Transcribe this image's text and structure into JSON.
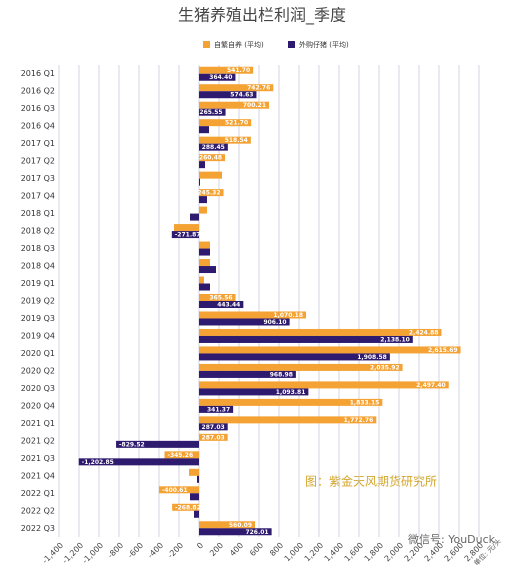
{
  "chart_data": {
    "type": "hbar",
    "title": "生猪养殖出栏利润_季度",
    "categories": [
      "2016 Q1",
      "2016 Q2",
      "2016 Q3",
      "2016 Q4",
      "2017 Q1",
      "2017 Q2",
      "2017 Q3",
      "2017 Q4",
      "2018 Q1",
      "2018 Q2",
      "2018 Q3",
      "2018 Q4",
      "2019 Q1",
      "2019 Q2",
      "2019 Q3",
      "2019 Q4",
      "2020 Q1",
      "2020 Q2",
      "2020 Q3",
      "2020 Q4",
      "2021 Q1",
      "2021 Q2",
      "2021 Q3",
      "2021 Q4",
      "2022 Q1",
      "2022 Q2",
      "2022 Q3"
    ],
    "series": [
      {
        "name": "自繁自养 (平均)",
        "color": "#f4a233",
        "values": [
          541.7,
          742.76,
          700.21,
          521.7,
          518.54,
          260.48,
          230,
          245.32,
          80,
          -250,
          110,
          110,
          50,
          365.56,
          1070.18,
          2424.88,
          2615.69,
          2035.92,
          2497.4,
          1833.15,
          1772.76,
          287.03,
          -345.26,
          -100,
          -400.61,
          -268.82,
          560.09
        ],
        "value_labels": [
          "541.70",
          "742.76",
          "700.21",
          "521.70",
          "518.54",
          "260.48",
          null,
          "245.32",
          null,
          null,
          null,
          null,
          null,
          "365.56",
          "1,070.18",
          "2,424.88",
          "2,615.69",
          "2,035.92",
          "2,497.40",
          "1,833.15",
          "1,772.76",
          "287.03",
          "-345.26",
          null,
          "-400.61",
          "-268.82",
          "560.09"
        ]
      },
      {
        "name": "外购仔猪 (平均)",
        "color": "#2e1a6e",
        "values": [
          364.4,
          574.63,
          265.55,
          100,
          288.45,
          60,
          10,
          80,
          -90,
          -271.87,
          110,
          170,
          110,
          443.44,
          906.1,
          2138.1,
          1908.58,
          968.98,
          1093.81,
          341.37,
          287.03,
          -829.52,
          -1202.85,
          -20,
          -90,
          -50,
          726.01
        ],
        "value_labels": [
          "364.40",
          "574.63",
          "265.55",
          null,
          "288.45",
          null,
          null,
          null,
          null,
          "-271.87",
          null,
          null,
          null,
          "443.44",
          "906.10",
          "2,138.10",
          "1,908.58",
          "968.98",
          "1,093.81",
          "341.37",
          "287.03",
          "-829.52",
          "-1,202.85",
          null,
          null,
          null,
          "726.01"
        ]
      }
    ],
    "xlim": [
      -1400,
      2800
    ],
    "xticks": [
      {
        "value": -1400,
        "label": "-1,400"
      },
      {
        "value": -1200,
        "label": "-1,200"
      },
      {
        "value": -1000,
        "label": "-1,000"
      },
      -800,
      -600,
      -400,
      -200,
      0,
      200,
      400,
      600,
      800,
      {
        "value": 1000,
        "label": "1,000"
      },
      {
        "value": 1200,
        "label": "1,200"
      },
      {
        "value": 1400,
        "label": "1,400"
      },
      {
        "value": 1600,
        "label": "1,600"
      },
      {
        "value": 1800,
        "label": "1,800"
      },
      {
        "value": 2000,
        "label": "2,000"
      },
      {
        "value": 2200,
        "label": "2,200"
      },
      {
        "value": 2400,
        "label": "2,400"
      },
      {
        "value": 2600,
        "label": "2,600"
      },
      {
        "value": 2800,
        "label": "2,800"
      }
    ],
    "grid": true,
    "annotation": "图：紫金天风期货研究所",
    "unit": "单位: 元/头",
    "watermark": "微信号: YouDuck"
  }
}
